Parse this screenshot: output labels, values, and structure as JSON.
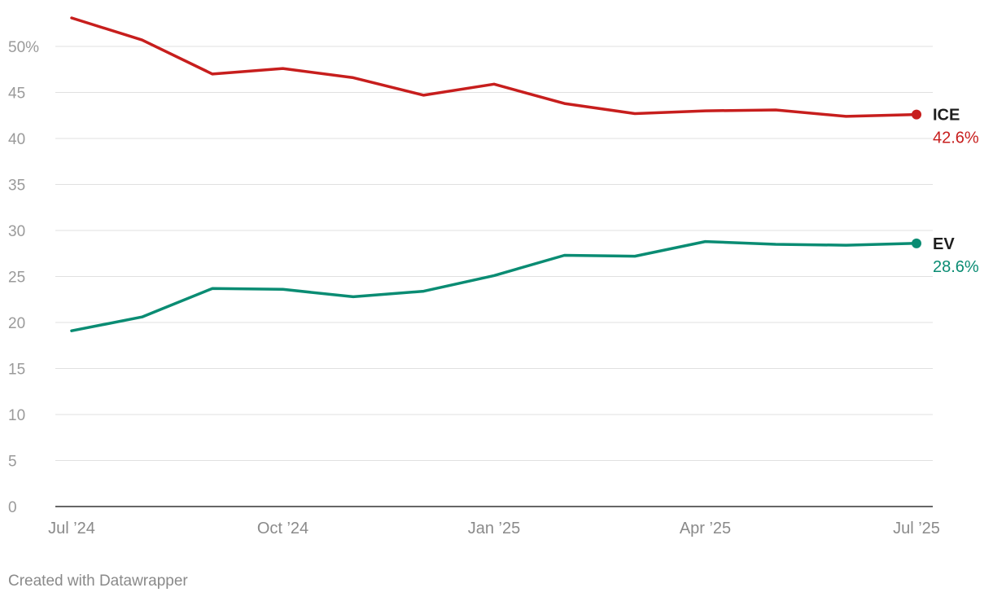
{
  "chart_data": {
    "type": "line",
    "title": "",
    "xlabel": "",
    "ylabel": "",
    "ylim": [
      0,
      50
    ],
    "y_ticks": [
      {
        "value": 0,
        "label": "0"
      },
      {
        "value": 5,
        "label": "5"
      },
      {
        "value": 10,
        "label": "10"
      },
      {
        "value": 15,
        "label": "15"
      },
      {
        "value": 20,
        "label": "20"
      },
      {
        "value": 25,
        "label": "25"
      },
      {
        "value": 30,
        "label": "30"
      },
      {
        "value": 35,
        "label": "35"
      },
      {
        "value": 40,
        "label": "40"
      },
      {
        "value": 45,
        "label": "45"
      },
      {
        "value": 50,
        "label": "50%"
      }
    ],
    "x": [
      "Jul 2024",
      "Aug 2024",
      "Sep 2024",
      "Oct 2024",
      "Nov 2024",
      "Dec 2024",
      "Jan 2025",
      "Feb 2025",
      "Mar 2025",
      "Apr 2025",
      "May 2025",
      "Jun 2025",
      "Jul 2025"
    ],
    "x_ticks": [
      {
        "index": 0,
        "label": "Jul ’24"
      },
      {
        "index": 3,
        "label": "Oct ’24"
      },
      {
        "index": 6,
        "label": "Jan ’25"
      },
      {
        "index": 9,
        "label": "Apr ’25"
      },
      {
        "index": 12,
        "label": "Jul ’25"
      }
    ],
    "series": [
      {
        "name": "ICE",
        "color": "#c71e1d",
        "values": [
          53.1,
          50.7,
          47.0,
          47.6,
          46.6,
          44.7,
          45.9,
          43.8,
          42.7,
          43.0,
          43.1,
          42.4,
          42.6
        ],
        "end_label": "42.6%"
      },
      {
        "name": "EV",
        "color": "#0a8c73",
        "values": [
          19.1,
          20.6,
          23.7,
          23.6,
          22.8,
          23.4,
          25.1,
          27.3,
          27.2,
          28.8,
          28.5,
          28.4,
          28.6
        ],
        "end_label": "28.6%"
      }
    ]
  },
  "footer": {
    "credit": "Created with Datawrapper"
  }
}
